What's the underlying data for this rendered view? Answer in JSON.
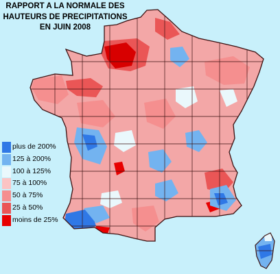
{
  "title_lines": [
    "RAPPORT A LA NORMALE DES",
    "HAUTEURS DE PRECIPITATIONS",
    "EN JUIN 2008"
  ],
  "legend": [
    {
      "label": "plus de 200%",
      "color": "#2f78e6"
    },
    {
      "label": "125 à 200%",
      "color": "#73b3f0"
    },
    {
      "label": "100 à 125%",
      "color": "#eaf8fc"
    },
    {
      "label": "75 à 100%",
      "color": "#fbc4c4"
    },
    {
      "label": "50 à 75%",
      "color": "#f58f8f"
    },
    {
      "label": "25 à 50%",
      "color": "#ea5656"
    },
    {
      "label": "moins de 25%",
      "color": "#e80000"
    }
  ],
  "colors": {
    "background": "#c8f0fb",
    "department_borders": "#3a1010",
    "base_fill": "#f3a7a7"
  }
}
